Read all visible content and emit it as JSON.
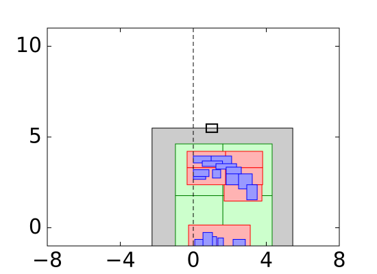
{
  "chart_data": {
    "type": "rects",
    "xlim": [
      -8,
      8
    ],
    "ylim": [
      -1,
      11
    ],
    "xticks": [
      {
        "value": -8,
        "label": "−8"
      },
      {
        "value": -4,
        "label": "−4"
      },
      0,
      4,
      8
    ],
    "yticks": [
      0,
      5,
      10
    ],
    "vline": 0,
    "layers": [
      {
        "color": "#cccccc",
        "edge": "#000000",
        "rects": [
          [
            -2.26,
            -1.5,
            5.45,
            5.49
          ]
        ]
      },
      {
        "color": "#ccffcc",
        "edge": "#008000",
        "rects": [
          [
            -0.98,
            1.77,
            1.62,
            4.62
          ],
          [
            1.62,
            1.77,
            4.32,
            4.62
          ],
          [
            -0.98,
            -1.5,
            1.62,
            1.77
          ],
          [
            1.62,
            -1.5,
            4.32,
            1.77
          ]
        ]
      },
      {
        "color": "#ffb3b3",
        "edge": "#ff0000",
        "rects": [
          [
            -0.34,
            3.31,
            1.77,
            4.21
          ],
          [
            1.77,
            3.31,
            3.8,
            4.21
          ],
          [
            -0.34,
            2.37,
            1.77,
            3.31
          ],
          [
            1.77,
            2.37,
            3.8,
            3.31
          ],
          [
            1.69,
            1.47,
            3.76,
            2.37
          ],
          [
            -0.26,
            -1.5,
            3.12,
            0.15
          ]
        ]
      },
      {
        "color": "#9999ff",
        "edge": "#0000ff",
        "rects": [
          [
            0,
            3.57,
            0.98,
            3.95
          ],
          [
            0.98,
            3.5,
            2.1,
            3.95
          ],
          [
            0.49,
            3.38,
            1.6,
            3.68
          ],
          [
            1.24,
            3.23,
            2.37,
            3.53
          ],
          [
            0,
            2.82,
            0.86,
            3.2
          ],
          [
            0,
            2.67,
            0.68,
            2.82
          ],
          [
            1.05,
            2.74,
            1.5,
            3.2
          ],
          [
            1.8,
            2.37,
            2.48,
            3.05
          ],
          [
            2.48,
            2.14,
            3.23,
            2.97
          ],
          [
            2.93,
            1.54,
            3.5,
            2.37
          ],
          [
            1.8,
            2.97,
            2.63,
            3.34
          ],
          [
            0.08,
            -1.1,
            0.86,
            -0.64
          ],
          [
            0.86,
            -1.1,
            1.28,
            -0.49
          ],
          [
            1.35,
            -1.1,
            1.65,
            -0.56
          ],
          [
            0.53,
            -1.1,
            1.05,
            -0.26
          ],
          [
            2.18,
            -1.1,
            2.85,
            -0.64
          ]
        ]
      },
      {
        "color": "none",
        "edge": "#000000",
        "rects": [
          [
            0.71,
            5.26,
            1.32,
            5.71
          ]
        ]
      }
    ]
  }
}
